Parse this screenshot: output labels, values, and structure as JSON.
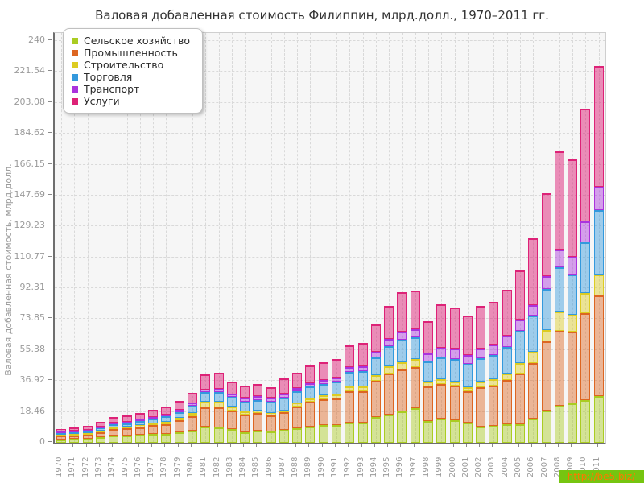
{
  "watermark": {
    "text": "http://be5.biz/",
    "bg_color": "#76c510",
    "text_color": "#ff7700"
  },
  "chart_data": {
    "type": "bar",
    "stacked": true,
    "title": "Валовая добавленная стоимость Филиппин, млрд.долл., 1970–2011 гг.",
    "ylabel": "Валовая добавленная стоимость, млрд.долл.",
    "ylim": [
      0,
      240
    ],
    "ytick_labels": [
      "0",
      "18.46",
      "36.92",
      "55.38",
      "73.85",
      "92.31",
      "110.77",
      "129.23",
      "147.69",
      "166.15",
      "184.62",
      "203.08",
      "221.54",
      "240"
    ],
    "grid": "dashed",
    "plot_bg": "#f6f6f6",
    "legend_position": "top-left",
    "categories": [
      "1970",
      "1971",
      "1972",
      "1973",
      "1974",
      "1975",
      "1976",
      "1977",
      "1978",
      "1979",
      "1980",
      "1981",
      "1982",
      "1983",
      "1984",
      "1985",
      "1986",
      "1987",
      "1988",
      "1989",
      "1990",
      "1991",
      "1992",
      "1993",
      "1994",
      "1995",
      "1996",
      "1997",
      "1998",
      "1999",
      "2000",
      "2001",
      "2002",
      "2003",
      "2004",
      "2005",
      "2006",
      "2007",
      "2008",
      "2009",
      "2010",
      "2011"
    ],
    "series": [
      {
        "key": "agriculture",
        "name": "Сельское хозяйство",
        "color": "#aacc22",
        "fill": "rgba(170,204,34,0.45)",
        "values": [
          2.0,
          2.3,
          2.4,
          3.2,
          4.2,
          4.3,
          4.6,
          5.1,
          5.5,
          6.4,
          7.3,
          9.4,
          9.3,
          8.3,
          6.4,
          7.4,
          6.9,
          7.7,
          8.8,
          9.8,
          10.5,
          10.8,
          12.2,
          12.0,
          15.5,
          17.0,
          19.0,
          20.5,
          13.0,
          14.2,
          13.4,
          11.8,
          9.7,
          10.2,
          11.0,
          11.3,
          14.2,
          19.3,
          21.9,
          23.8,
          25.4,
          27.8
        ]
      },
      {
        "key": "industry",
        "name": "Промышленность",
        "color": "#dd6622",
        "fill": "rgba(221,102,34,0.45)",
        "values": [
          1.7,
          2.0,
          2.2,
          2.9,
          3.8,
          4.2,
          4.7,
          5.3,
          5.8,
          6.9,
          8.6,
          11.8,
          11.9,
          10.9,
          10.4,
          10.4,
          9.6,
          10.4,
          13.0,
          14.7,
          15.4,
          15.8,
          18.4,
          18.8,
          21.5,
          24.4,
          24.8,
          24.7,
          20.6,
          20.8,
          20.8,
          19.2,
          23.5,
          24.0,
          26.4,
          30.1,
          33.6,
          41.4,
          44.8,
          42.5,
          52.1,
          60.1
        ]
      },
      {
        "key": "construction",
        "name": "Строительство",
        "color": "#ddcc22",
        "fill": "rgba(221,204,34,0.45)",
        "values": [
          0.3,
          0.3,
          0.3,
          0.4,
          0.5,
          0.9,
          1.1,
          1.2,
          1.4,
          1.7,
          2.1,
          3.2,
          3.3,
          2.6,
          2.1,
          1.6,
          1.3,
          1.3,
          1.9,
          2.2,
          2.4,
          2.4,
          3.0,
          3.1,
          3.6,
          4.5,
          4.4,
          4.8,
          2.9,
          3.2,
          2.4,
          2.4,
          3.4,
          3.6,
          4.0,
          6.4,
          6.5,
          6.6,
          11.9,
          10.4,
          12.0,
          12.8
        ]
      },
      {
        "key": "trade",
        "name": "Торговля",
        "color": "#3399dd",
        "fill": "rgba(51,153,221,0.45)",
        "values": [
          1.0,
          1.1,
          1.2,
          1.6,
          2.1,
          2.3,
          2.5,
          2.8,
          3.0,
          3.5,
          4.3,
          5.8,
          5.9,
          5.4,
          5.6,
          6.2,
          6.7,
          7.5,
          7.0,
          6.8,
          7.0,
          7.4,
          8.5,
          8.8,
          10.2,
          11.6,
          13.3,
          12.9,
          12.3,
          12.9,
          13.6,
          13.6,
          14.0,
          14.5,
          15.7,
          19.2,
          21.6,
          24.8,
          26.1,
          24.0,
          30.5,
          38.5
        ]
      },
      {
        "key": "transport",
        "name": "Транспорт",
        "color": "#aa33dd",
        "fill": "rgba(170,51,221,0.45)",
        "values": [
          0.3,
          0.3,
          0.3,
          0.4,
          0.5,
          0.6,
          0.7,
          0.8,
          0.9,
          1.0,
          1.3,
          1.8,
          1.9,
          1.7,
          2.4,
          2.4,
          2.4,
          2.4,
          2.2,
          2.2,
          2.3,
          2.5,
          2.9,
          3.1,
          3.6,
          4.4,
          4.8,
          4.8,
          4.8,
          5.5,
          6.0,
          5.6,
          5.6,
          6.2,
          6.7,
          6.4,
          6.4,
          7.7,
          10.8,
          10.4,
          12.2,
          13.6
        ]
      },
      {
        "key": "services",
        "name": "Услуги",
        "color": "#dd2277",
        "fill": "rgba(221,34,119,0.50)",
        "values": [
          1.7,
          2.0,
          2.2,
          2.8,
          3.6,
          3.8,
          4.1,
          4.6,
          4.8,
          5.6,
          6.4,
          9.1,
          9.4,
          7.7,
          7.5,
          7.2,
          6.1,
          9.3,
          9.2,
          10.5,
          10.7,
          11.3,
          13.4,
          13.9,
          16.5,
          19.9,
          23.7,
          23.4,
          19.0,
          26.0,
          24.5,
          23.3,
          25.6,
          25.7,
          27.8,
          29.7,
          40.1,
          49.4,
          58.6,
          58.2,
          67.5,
          72.4
        ]
      }
    ]
  }
}
